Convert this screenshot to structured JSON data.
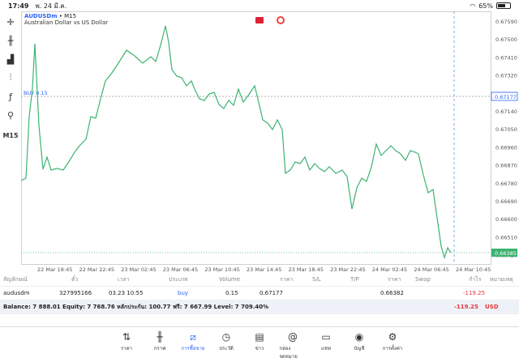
{
  "status": {
    "time": "17:49",
    "date": "พ. 24 มี.ค.",
    "battery": "65%",
    "battery_level": 0.65
  },
  "chart": {
    "symbol": "AUDUSDm",
    "timeframe_suffix": "• M15",
    "description": "Australian Dollar vs US Dollar",
    "timeframe_label": "M15",
    "buy_label": "BUY 0.15",
    "price_labels": [
      "0.67590",
      "0.67500",
      "0.67410",
      "0.67320",
      "0.67230",
      "0.67140",
      "0.67050",
      "0.66960",
      "0.66870",
      "0.66780",
      "0.66690",
      "0.66600",
      "0.66510",
      "0.66420"
    ],
    "current_price": "0.66385",
    "buy_price_tag": "0.67177",
    "time_labels": [
      "22 Mar 18:45",
      "22 Mar 22:45",
      "23 Mar 02:45",
      "23 Mar 06:45",
      "23 Mar 10:45",
      "23 Mar 14:45",
      "23 Mar 18:45",
      "23 Mar 22:45",
      "24 Mar 02:45",
      "24 Mar 06:45",
      "24 Mar 10:45"
    ],
    "line_color": "#3cb371"
  },
  "table": {
    "headers": [
      "สัญลักษณ์",
      "ตั๋ว",
      "เวลา",
      "ประเภท",
      "Volume",
      "ราคา",
      "S/L",
      "T/P",
      "ราคา",
      "Swap",
      "กำไร",
      "หมายเหตุ"
    ],
    "row": {
      "symbol": "audusdm",
      "ticket": "327995166",
      "time": "03.23 10:55",
      "type": "buy",
      "volume": "0.15",
      "open_price": "0.67177",
      "current_price": "0.66382",
      "profit": "-119.25"
    },
    "balance_text": "Balance: 7 888.01 Equity: 7 768.76 หลักประกัน: 100.77 ฟรี: 7 667.99 Level: 7 709.40%",
    "total_profit": "-119.25",
    "currency": "USD"
  },
  "tabs": [
    {
      "label": "ราคา",
      "icon": "quotes-icon"
    },
    {
      "label": "กราฟ",
      "icon": "chart-icon"
    },
    {
      "label": "การซื้อขาย",
      "icon": "trade-icon"
    },
    {
      "label": "ประวัติ",
      "icon": "history-icon"
    },
    {
      "label": "ข่าว",
      "icon": "news-icon"
    },
    {
      "label": "กล่องจดหมาย",
      "icon": "mailbox-icon"
    },
    {
      "label": "แชท",
      "icon": "chat-icon"
    },
    {
      "label": "บัญชี",
      "icon": "account-icon"
    },
    {
      "label": "การตั้งค่า",
      "icon": "settings-icon"
    }
  ]
}
